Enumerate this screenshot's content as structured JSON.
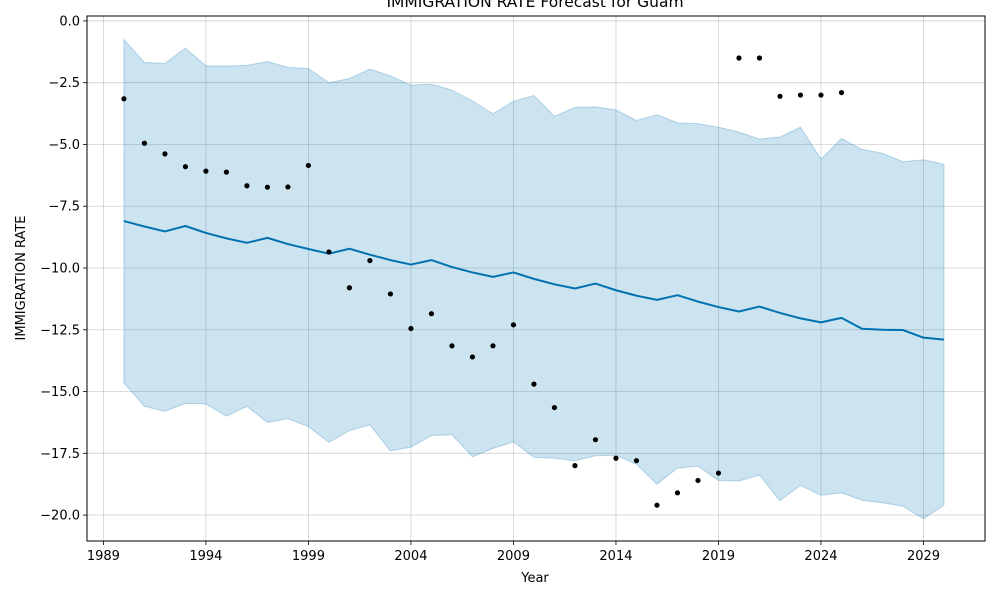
{
  "chart_data": {
    "type": "line",
    "title": "IMMIGRATION RATE Forecast for Guam",
    "xlabel": "Year",
    "ylabel": "IMMIGRATION RATE",
    "xlim": [
      1988.2,
      2032.0
    ],
    "ylim": [
      -21.05,
      0.2
    ],
    "x_ticks": [
      1989,
      1994,
      1999,
      2004,
      2009,
      2014,
      2019,
      2024,
      2029
    ],
    "x_tick_labels": [
      "1989",
      "1994",
      "1999",
      "2004",
      "2009",
      "2014",
      "2019",
      "2024",
      "2029"
    ],
    "y_ticks": [
      0.0,
      -2.5,
      -5.0,
      -7.5,
      -10.0,
      -12.5,
      -15.0,
      -17.5,
      -20.0
    ],
    "y_tick_labels": [
      "0.0",
      "−2.5",
      "−5.0",
      "−7.5",
      "−10.0",
      "−12.5",
      "−15.0",
      "−17.5",
      "−20.0"
    ],
    "grid": true,
    "colors": {
      "forecast_line": "#0072B2",
      "interval_fill": "#0072B2",
      "observed_points": "#000000"
    },
    "series": [
      {
        "kind": "observed",
        "x": [
          1990,
          1991,
          1992,
          1993,
          1994,
          1995,
          1996,
          1997,
          1998,
          1999,
          2000,
          2001,
          2002,
          2003,
          2004,
          2005,
          2006,
          2007,
          2008,
          2009,
          2010,
          2011,
          2012,
          2013,
          2014,
          2015,
          2016,
          2017,
          2018,
          2019,
          2020,
          2021,
          2022,
          2023,
          2024,
          2025
        ],
        "y": [
          -3.15,
          -4.95,
          -5.38,
          -5.9,
          -6.08,
          -6.12,
          -6.67,
          -6.73,
          -6.72,
          -5.85,
          -9.35,
          -10.8,
          -9.7,
          -11.05,
          -12.45,
          -11.85,
          -13.15,
          -13.6,
          -13.15,
          -12.3,
          -14.7,
          -15.65,
          -18.0,
          -16.95,
          -17.7,
          -17.8,
          -19.6,
          -19.1,
          -18.6,
          -18.3,
          -1.5,
          -1.5,
          -3.05,
          -3.0,
          -3.0,
          -2.9
        ]
      },
      {
        "kind": "forecast",
        "x": [
          1990,
          1991,
          1992,
          1993,
          1994,
          1995,
          1996,
          1997,
          1998,
          1999,
          2000,
          2001,
          2002,
          2003,
          2004,
          2005,
          2006,
          2007,
          2008,
          2009,
          2010,
          2011,
          2012,
          2013,
          2014,
          2015,
          2016,
          2017,
          2018,
          2019,
          2020,
          2021,
          2022,
          2023,
          2024,
          2025,
          2026,
          2027,
          2028,
          2029,
          2030
        ],
        "y": [
          -8.1,
          -8.32,
          -8.52,
          -8.3,
          -8.58,
          -8.8,
          -8.98,
          -8.78,
          -9.03,
          -9.23,
          -9.42,
          -9.22,
          -9.46,
          -9.68,
          -9.86,
          -9.68,
          -9.96,
          -10.18,
          -10.36,
          -10.18,
          -10.44,
          -10.66,
          -10.83,
          -10.63,
          -10.9,
          -11.12,
          -11.29,
          -11.1,
          -11.36,
          -11.58,
          -11.76,
          -11.56,
          -11.82,
          -12.04,
          -12.2,
          -12.02,
          -12.46,
          -12.5,
          -12.51,
          -12.82,
          -12.9
        ]
      },
      {
        "kind": "interval-upper",
        "x": [
          1990,
          1991,
          1992,
          1993,
          1994,
          1995,
          1996,
          1997,
          1998,
          1999,
          2000,
          2001,
          2002,
          2003,
          2004,
          2005,
          2006,
          2007,
          2008,
          2009,
          2010,
          2011,
          2012,
          2013,
          2014,
          2015,
          2016,
          2017,
          2018,
          2019,
          2020,
          2021,
          2022,
          2023,
          2024,
          2025,
          2026,
          2027,
          2028,
          2029,
          2030
        ],
        "y": [
          -0.75,
          -1.68,
          -1.72,
          -1.1,
          -1.82,
          -1.83,
          -1.8,
          -1.64,
          -1.88,
          -1.93,
          -2.5,
          -2.33,
          -1.95,
          -2.22,
          -2.6,
          -2.56,
          -2.8,
          -3.24,
          -3.76,
          -3.25,
          -3.02,
          -3.86,
          -3.5,
          -3.48,
          -3.6,
          -4.03,
          -3.8,
          -4.12,
          -4.16,
          -4.3,
          -4.5,
          -4.78,
          -4.7,
          -4.3,
          -5.6,
          -4.76,
          -5.2,
          -5.36,
          -5.7,
          -5.62,
          -5.8
        ]
      },
      {
        "kind": "interval-lower",
        "x": [
          1990,
          1991,
          1992,
          1993,
          1994,
          1995,
          1996,
          1997,
          1998,
          1999,
          2000,
          2001,
          2002,
          2003,
          2004,
          2005,
          2006,
          2007,
          2008,
          2009,
          2010,
          2011,
          2012,
          2013,
          2014,
          2015,
          2016,
          2017,
          2018,
          2019,
          2020,
          2021,
          2022,
          2023,
          2024,
          2025,
          2026,
          2027,
          2028,
          2029,
          2030
        ],
        "y": [
          -14.65,
          -15.6,
          -15.8,
          -15.48,
          -15.5,
          -16.0,
          -15.6,
          -16.25,
          -16.1,
          -16.42,
          -17.06,
          -16.58,
          -16.35,
          -17.4,
          -17.25,
          -16.78,
          -16.75,
          -17.64,
          -17.3,
          -17.04,
          -17.66,
          -17.7,
          -17.8,
          -17.6,
          -17.58,
          -17.94,
          -18.75,
          -18.1,
          -18.02,
          -18.6,
          -18.62,
          -18.38,
          -19.42,
          -18.8,
          -19.2,
          -19.1,
          -19.4,
          -19.5,
          -19.65,
          -20.15,
          -19.6
        ]
      }
    ]
  }
}
